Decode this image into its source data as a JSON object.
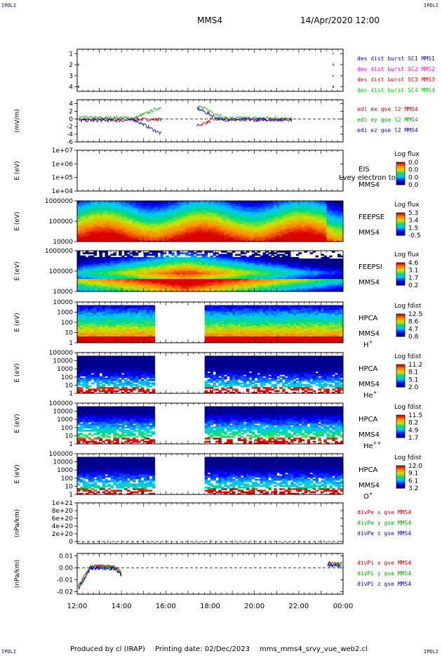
{
  "corner_tag": "IPDLI",
  "header": {
    "spacecraft": "MMS4",
    "datetime": "14/Apr/2020 12:00"
  },
  "footer": {
    "produced": "Produced by cl (IRAP)",
    "printing": "Printing date: 02/Dec/2023",
    "file": "mms_mms4_srvy_vue_web2.cl"
  },
  "colors": {
    "c1": "#0000ff",
    "c2": "#ff00ff",
    "c3": "#ff0000",
    "c4": "#00cc00",
    "ex": "#cc0000",
    "ey": "#00aa00",
    "ez": "#0000cc"
  },
  "chart_data": [
    {
      "type": "scatter",
      "id": "burst",
      "y_ticks": [
        "1",
        "2",
        "3",
        "4"
      ],
      "ylim": [
        0.6,
        4.4
      ],
      "legend": [
        {
          "text": "des dist burst SC1 MMS1",
          "color": "#0000ff"
        },
        {
          "text": "des dist burst SC2 MMS2",
          "color": "#ff00ff"
        },
        {
          "text": "des dist burst SC3 MMS3",
          "color": "#ff0000"
        },
        {
          "text": "des dist burst SC4 MMS4",
          "color": "#00cc00"
        }
      ]
    },
    {
      "type": "line",
      "id": "edi",
      "ylabel": "(mV/m)",
      "y_ticks": [
        "4",
        "2",
        "0",
        "-2",
        "-4",
        "-6"
      ],
      "ylim": [
        -6,
        5
      ],
      "legend": [
        {
          "text": "edi ex gse l2 MMS4",
          "color": "#cc0000"
        },
        {
          "text": "edi ey gse l2 MMS4",
          "color": "#00aa00"
        },
        {
          "text": "edi ez gse l2 MMS4",
          "color": "#0000cc"
        }
      ]
    },
    {
      "type": "heatmap",
      "id": "eis",
      "ylabel": "E (eV)",
      "y_ticks": [
        "1e+07",
        "1e+06",
        "1e+05",
        "1e+04"
      ],
      "right": [
        "EIS",
        "MMS4"
      ],
      "overlay": "Lvey electron to",
      "cbar_title": "Log flux",
      "cbar_ticks": [
        "0.0",
        "0.0",
        "0.0",
        "0.0"
      ]
    },
    {
      "type": "heatmap",
      "id": "feepse",
      "ylabel": "E (eV)",
      "y_ticks": [
        "1000000",
        "100000",
        "10000"
      ],
      "right": [
        "FEEPSE",
        "MMS4"
      ],
      "cbar_title": "Log flux",
      "cbar_ticks": [
        "5.3",
        "3.4",
        "1.5",
        "-0.5"
      ]
    },
    {
      "type": "heatmap",
      "id": "feepsi",
      "ylabel": "E (eV)",
      "y_ticks": [
        "1000000",
        "100000",
        "10000"
      ],
      "right": [
        "FEEPSI",
        "MMS4"
      ],
      "cbar_title": "Log flux",
      "cbar_ticks": [
        "4.6",
        "3.1",
        "1.7",
        "0.2"
      ]
    },
    {
      "type": "heatmap",
      "id": "hpca_h",
      "ylabel": "E (eV)",
      "y_ticks": [
        "10000",
        "1000",
        "100",
        "10",
        "1"
      ],
      "right": [
        "HPCA",
        "MMS4"
      ],
      "ion": "H",
      "charge": "+",
      "cbar_title": "Log fdist",
      "cbar_ticks": [
        "12.5",
        "8.6",
        "4.7",
        "0.8"
      ]
    },
    {
      "type": "heatmap",
      "id": "hpca_he",
      "ylabel": "E (eV)",
      "y_ticks": [
        "100000",
        "10000",
        "1000",
        "100",
        "10",
        "1"
      ],
      "right": [
        "HPCA",
        "MMS4"
      ],
      "ion": "He",
      "charge": "+",
      "cbar_title": "Log fdist",
      "cbar_ticks": [
        "11.2",
        "8.1",
        "5.1",
        "2.0"
      ]
    },
    {
      "type": "heatmap",
      "id": "hpca_he2",
      "ylabel": "E (eV)",
      "y_ticks": [
        "100000",
        "10000",
        "1000",
        "100",
        "10",
        "1"
      ],
      "right": [
        "HPCA",
        "MMS4"
      ],
      "ion": "He",
      "charge": "++",
      "cbar_title": "Log fdist",
      "cbar_ticks": [
        "11.5",
        "8.2",
        "4.9",
        "1.7"
      ]
    },
    {
      "type": "heatmap",
      "id": "hpca_o",
      "ylabel": "E (eV)",
      "y_ticks": [
        "100000",
        "10000",
        "1000",
        "100",
        "10",
        "1"
      ],
      "right": [
        "HPCA",
        "MMS4"
      ],
      "ion": "O",
      "charge": "+",
      "cbar_title": "Log fdist",
      "cbar_ticks": [
        "12.0",
        "9.1",
        "6.1",
        "3.2"
      ]
    },
    {
      "type": "line",
      "id": "divpe",
      "ylabel": "(nPa/km)",
      "y_ticks": [
        "1e+21",
        "8e+20",
        "6e+20",
        "4e+20",
        "2e+20",
        "0"
      ],
      "ylim": [
        0,
        1.1e+21
      ],
      "legend": [
        {
          "text": "divPe x gse MMS4",
          "color": "#cc0000"
        },
        {
          "text": "divPe y gse MMS4",
          "color": "#00aa00"
        },
        {
          "text": "divPe z gse MMS4",
          "color": "#0000cc"
        }
      ]
    },
    {
      "type": "line",
      "id": "divpi",
      "ylabel": "(nPa/km)",
      "y_ticks": [
        "0.01",
        "0.00",
        "-0.01",
        "-0.02"
      ],
      "ylim": [
        -0.022,
        0.012
      ],
      "legend": [
        {
          "text": "divPi x gse MMS4",
          "color": "#cc0000"
        },
        {
          "text": "divPi y gse MMS4",
          "color": "#00aa00"
        },
        {
          "text": "divPi z gse MMS4",
          "color": "#0000cc"
        }
      ]
    }
  ],
  "x_ticks": [
    "12:00",
    "14:00",
    "16:00",
    "18:00",
    "20:00",
    "22:00",
    "00:00"
  ]
}
